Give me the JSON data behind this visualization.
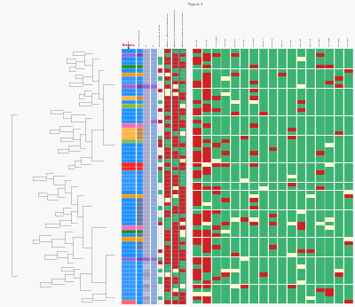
{
  "title": "Figure 1",
  "n_rows": 65,
  "n_heatmap_cols": 17,
  "region_colors": [
    "#FF6666",
    "#3399FF",
    "#3399FF",
    "#3399FF",
    "#3399FF",
    "#3399FF",
    "#3399FF",
    "#3399FF",
    "#3399FF",
    "#3399FF",
    "#3399FF",
    "#9966CC",
    "#1E90FF",
    "#1E90FF",
    "#1E90FF",
    "#1E90FF",
    "#FF9900",
    "#1E90FF",
    "#228B22",
    "#FF69B4",
    "#1E90FF",
    "#1E90FF",
    "#1E90FF",
    "#1E90FF",
    "#1E90FF",
    "#1E90FF",
    "#1E90FF",
    "#FF9900",
    "#1E90FF",
    "#3399FF",
    "#3399FF",
    "#3399FF",
    "#3399FF",
    "#3399FF",
    "#FF2222",
    "#FF2222",
    "#1E90FF",
    "#1E90FF",
    "#1E90FF",
    "#1E90FF",
    "#1E90FF",
    "#88BB44",
    "#FFB347",
    "#FFB347",
    "#FFB347",
    "#FF69B4",
    "#1E90FF",
    "#1E90FF",
    "#1E90FF",
    "#1E90FF",
    "#88BB44",
    "#1E90FF",
    "#FFB347",
    "#1E90FF",
    "#1E90FF",
    "#9966CC",
    "#3399FF",
    "#3399FF",
    "#FF9900",
    "#1E90FF",
    "#228B22",
    "#1E90FF",
    "#1E90FF",
    "#9966CC",
    "#1E90FF"
  ],
  "flock_label_colors": [
    "#1E90FF",
    "#1E90FF",
    "#1E90FF",
    "#1E90FF",
    "#1E90FF",
    "#1E90FF",
    "#1E90FF",
    "#1E90FF",
    "#1E90FF",
    "#1E90FF",
    "#1E90FF",
    "#6644AA",
    "#1E90FF",
    "#1E90FF",
    "#5577AA",
    "#5577AA",
    "#FF9900",
    "#5577AA",
    "#228B22",
    "#FF69B4",
    "#5577AA",
    "#5577AA",
    "#5577AA",
    "#5577AA",
    "#5577AA",
    "#5577AA",
    "#5577AA",
    "#FF9900",
    "#1E90FF",
    "#1E90FF",
    "#1E90FF",
    "#1E90FF",
    "#1E90FF",
    "#1E90FF",
    "#FF2222",
    "#FF2222",
    "#1E90FF",
    "#1E90FF",
    "#1E90FF",
    "#1E90FF",
    "#1E90FF",
    "#88BB44",
    "#CC8833",
    "#CC8833",
    "#CC8833",
    "#FF69B4",
    "#1E90FF",
    "#1E90FF",
    "#1E90FF",
    "#1E90FF",
    "#88BB44",
    "#1E90FF",
    "#CC8833",
    "#1E90FF",
    "#1E90FF",
    "#6644AA",
    "#1E90FF",
    "#1E90FF",
    "#FF9900",
    "#1E90FF",
    "#228B22",
    "#1E90FF",
    "#1E90FF",
    "#6644AA",
    "#1E90FF"
  ],
  "st_colors": [
    "#AAAACC",
    "#9999BB",
    "#BBBBDD",
    "#AAAACC",
    "#9999BB",
    "#BBBBDD",
    "#AAAACC",
    "#9999BB",
    "#AAAACC",
    "#BBBBDD",
    "#AAAACC",
    "#9966CC",
    "#AAAACC",
    "#AAAACC",
    "#AAAACC",
    "#AAAACC",
    "#AAAACC",
    "#AAAACC",
    "#AAAACC",
    "#AAAACC",
    "#AAAACC",
    "#AAAACC",
    "#AAAACC",
    "#AAAACC",
    "#AAAACC",
    "#AAAACC",
    "#AAAACC",
    "#AAAACC",
    "#AAAACC",
    "#AAAACC",
    "#AAAACC",
    "#AAAACC",
    "#AAAACC",
    "#AAAACC",
    "#AAAACC",
    "#AAAACC",
    "#AAAACC",
    "#AAAACC",
    "#AAAACC",
    "#AAAACC",
    "#AAAACC",
    "#AAAACC",
    "#AAAACC",
    "#AAAACC",
    "#AAAACC",
    "#AAAACC",
    "#AAAACC",
    "#AAAACC",
    "#AAAACC",
    "#AAAACC",
    "#AAAACC",
    "#AAAACC",
    "#AAAACC",
    "#AAAACC",
    "#AAAACC",
    "#9966CC",
    "#AAAACC",
    "#AAAACC",
    "#AAAACC",
    "#AAAACC",
    "#AAAACC",
    "#AAAACC",
    "#AAAACC",
    "#AAAACC",
    "#AAAACC"
  ],
  "cc_colors": [
    "#88AADD",
    "#88AADD",
    "#88AADD",
    "#88AADD",
    "#88AADD",
    "#88AADD",
    "#88AADD",
    "#88AADD",
    "#88AADD",
    "#88AADD",
    "#88AADD",
    "#9966CC",
    "#88AADD",
    "#88AADD",
    "#88AADD",
    "#88AADD",
    "#88AADD",
    "#88AADD",
    "#88AADD",
    "#88AADD",
    "#88AADD",
    "#88AADD",
    "#88AADD",
    "#88AADD",
    "#88AADD",
    "#88AADD",
    "#88AADD",
    "#88AADD",
    "#88AADD",
    "#88AADD",
    "#88AADD",
    "#88AADD",
    "#88AADD",
    "#88AADD",
    "#88AADD",
    "#88AADD",
    "#88AADD",
    "#88AADD",
    "#88AADD",
    "#88AADD",
    "#88AADD",
    "#88AADD",
    "#88AADD",
    "#88AADD",
    "#88AADD",
    "#88AADD",
    "#9966CC",
    "#88AADD",
    "#88AADD",
    "#88AADD",
    "#88AADD",
    "#88AADD",
    "#88AADD",
    "#88AADD",
    "#88AADD",
    "#9966CC",
    "#88AADD",
    "#88AADD",
    "#88AADD",
    "#88AADD",
    "#88AADD",
    "#88AADD",
    "#88AADD",
    "#88AADD",
    "#88AADD"
  ],
  "col_headers": [
    "Region",
    "flock_snoRNA_DB",
    "ST",
    "CC",
    "Plasmid_Source_typing",
    "Pentraxin_Tetracycline_Resistance",
    "Pentraxin_CiproRofloxacin_Resistance",
    "Pentraxin_Streptomycin_Resistance"
  ],
  "heatmap_col_labels": [
    "TetO-tet",
    "TetO-bla",
    "TetO-aph(3)",
    "TetO-aac",
    "TetO-ant",
    "TetO-cat",
    "TetO-cme",
    "TetO-gyr",
    "TetO-erm",
    "TetO-lin",
    "TetO-cfr",
    "TetO-van",
    "TetO-dha",
    "TetO-bla2",
    "TetO-aph2",
    "TetO-tet2",
    "TetO-cat2"
  ],
  "green": "#3CB371",
  "red": "#CC2222",
  "light_yellow": "#FFFACD",
  "orange": "#FFA500",
  "background": "#F8F8F8",
  "tree_color": "#999999"
}
